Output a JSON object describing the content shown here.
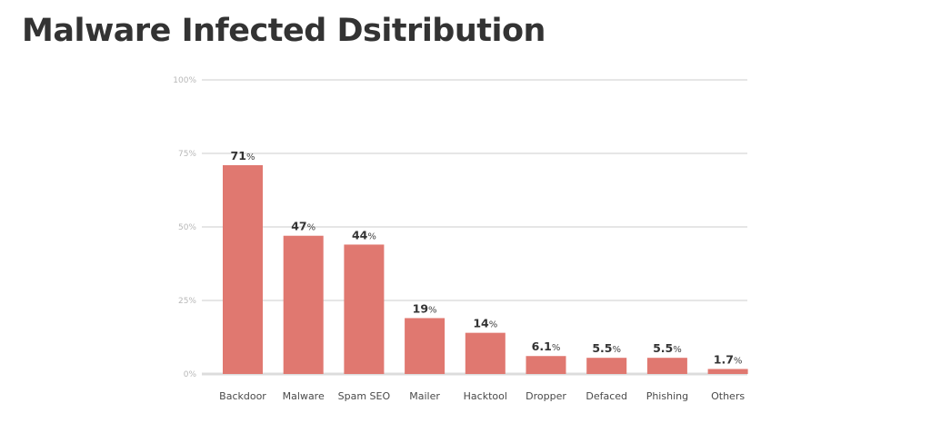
{
  "chart_data": {
    "type": "bar",
    "title": "Malware Infected Dsitribution",
    "categories": [
      "Backdoor",
      "Malware",
      "Spam SEO",
      "Mailer",
      "Hacktool",
      "Dropper",
      "Defaced",
      "Phishing",
      "Others"
    ],
    "values": [
      71,
      47,
      44,
      19,
      14,
      6.1,
      5.5,
      5.5,
      1.7
    ],
    "value_labels": [
      "71",
      "47",
      "44",
      "19",
      "14",
      "6.1",
      "5.5",
      "5.5",
      "1.7"
    ],
    "value_suffix": "%",
    "y_ticks": [
      "0%",
      "25%",
      "50%",
      "75%",
      "100%"
    ],
    "ylim": [
      0,
      100
    ],
    "grid": true,
    "bar_color": "#e07870",
    "grid_color": "#e6e6e6"
  }
}
